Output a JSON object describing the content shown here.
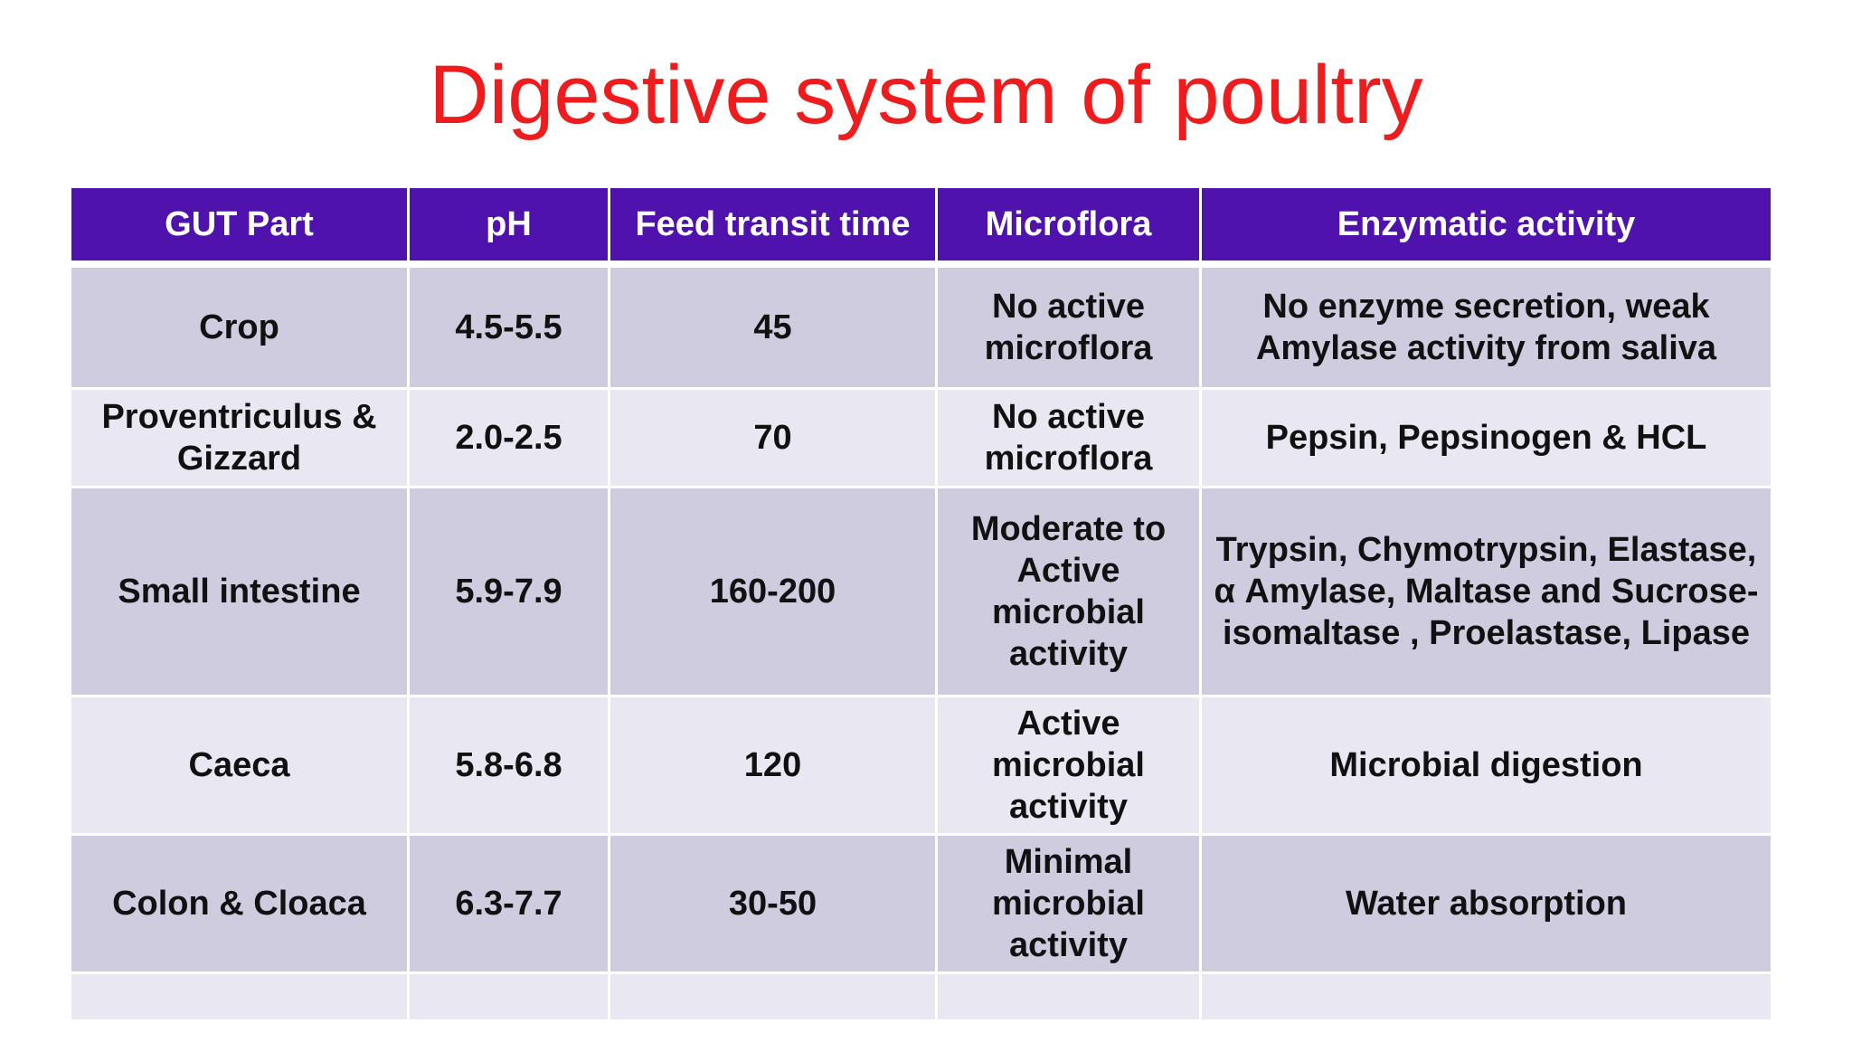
{
  "title": "Digestive system of poultry",
  "table": {
    "headers": [
      "GUT Part",
      "pH",
      "Feed transit time",
      "Microflora",
      "Enzymatic activity"
    ],
    "rows": [
      [
        "Crop",
        "4.5-5.5",
        "45",
        "No active microflora",
        "No enzyme secretion, weak Amylase activity from saliva"
      ],
      [
        "Proventriculus & Gizzard",
        "2.0-2.5",
        "70",
        "No active microflora",
        "Pepsin, Pepsinogen & HCL"
      ],
      [
        "Small intestine",
        "5.9-7.9",
        "160-200",
        "Moderate to Active microbial activity",
        "Trypsin, Chymotrypsin, Elastase, α Amylase, Maltase and Sucrose-isomaltase , Proelastase, Lipase"
      ],
      [
        "Caeca",
        "5.8-6.8",
        "120",
        "Active microbial activity",
        "Microbial digestion"
      ],
      [
        "Colon & Cloaca",
        "6.3-7.7",
        "30-50",
        "Minimal microbial activity",
        "Water absorption"
      ],
      [
        "",
        "",
        "",
        "",
        ""
      ]
    ]
  },
  "colors": {
    "title": "#ee1c1c",
    "header_bg": "#4f12ad",
    "row_dark": "#cfcce0",
    "row_light": "#e9e8f2"
  }
}
